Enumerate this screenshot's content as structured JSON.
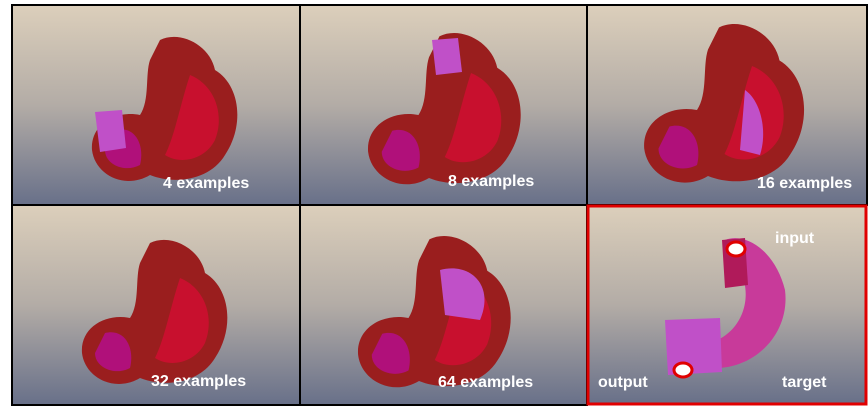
{
  "panels": [
    {
      "label": "4 examples"
    },
    {
      "label": "8 examples"
    },
    {
      "label": "16 examples"
    },
    {
      "label": "32 examples"
    },
    {
      "label": "64 examples"
    },
    {
      "labels": [
        "input",
        "output",
        "target"
      ]
    }
  ]
}
